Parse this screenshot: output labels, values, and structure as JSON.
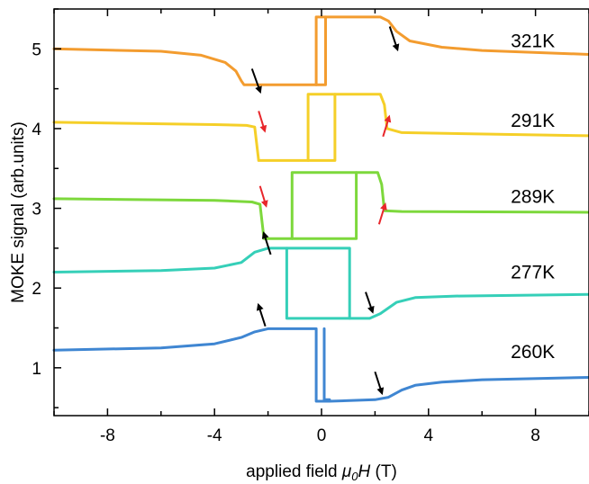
{
  "chart_data": {
    "type": "line",
    "xlabel_prefix": "applied field ",
    "xlabel_var_mu": "μ",
    "xlabel_var_sub": "0",
    "xlabel_var_h": "H",
    "xlabel_unit": " (T)",
    "ylabel": "MOKE signal (arb.units)",
    "xlim": [
      -10,
      10
    ],
    "ylim": [
      0.4,
      5.5
    ],
    "xticks": [
      -8,
      -4,
      0,
      4,
      8
    ],
    "yticks": [
      1,
      2,
      3,
      4,
      5
    ],
    "grid": false,
    "series": [
      {
        "name": "321K",
        "color": "#f39c2f",
        "label_pos": [
          7.9,
          5.1
        ],
        "branch_a": [
          [
            -10,
            5.0
          ],
          [
            -6,
            4.97
          ],
          [
            -4.5,
            4.92
          ],
          [
            -3.6,
            4.83
          ],
          [
            -3.2,
            4.72
          ],
          [
            -3.0,
            4.6
          ],
          [
            -2.9,
            4.55
          ],
          [
            0.15,
            4.55
          ],
          [
            0.15,
            5.4
          ],
          [
            2.2,
            5.4
          ],
          [
            2.5,
            5.35
          ],
          [
            2.8,
            5.22
          ],
          [
            3.3,
            5.1
          ],
          [
            4.5,
            5.02
          ],
          [
            6,
            4.98
          ],
          [
            10,
            4.93
          ]
        ],
        "branch_b": [
          [
            -0.2,
            4.55
          ],
          [
            -0.2,
            5.4
          ],
          [
            0.15,
            5.4
          ]
        ],
        "arrows": [
          {
            "x": -2.6,
            "y": 4.75,
            "dx": 0.3,
            "dy": -0.28,
            "color": "#000000"
          },
          {
            "x": 2.55,
            "y": 5.28,
            "dx": 0.28,
            "dy": -0.28,
            "color": "#000000"
          }
        ]
      },
      {
        "name": "291K",
        "color": "#f5cf28",
        "label_pos": [
          7.9,
          4.1
        ],
        "branch_a": [
          [
            -10,
            4.08
          ],
          [
            -4,
            4.05
          ],
          [
            -2.8,
            4.04
          ],
          [
            -2.5,
            4.02
          ],
          [
            -2.35,
            3.6
          ],
          [
            0.5,
            3.6
          ],
          [
            0.5,
            4.43
          ],
          [
            2.2,
            4.43
          ],
          [
            2.35,
            4.3
          ],
          [
            2.45,
            4.0
          ],
          [
            3,
            3.95
          ],
          [
            10,
            3.91
          ]
        ],
        "branch_b": [
          [
            -0.5,
            3.6
          ],
          [
            -0.5,
            4.43
          ],
          [
            0.5,
            4.43
          ]
        ],
        "arrows": [
          {
            "x": -2.35,
            "y": 4.22,
            "dx": 0.22,
            "dy": -0.24,
            "color": "#e8262b"
          },
          {
            "x": 2.3,
            "y": 3.9,
            "dx": 0.22,
            "dy": 0.24,
            "color": "#e8262b"
          }
        ]
      },
      {
        "name": "289K",
        "color": "#7dd83c",
        "label_pos": [
          7.9,
          3.15
        ],
        "branch_a": [
          [
            -10,
            3.12
          ],
          [
            -4,
            3.1
          ],
          [
            -2.6,
            3.08
          ],
          [
            -2.3,
            3.05
          ],
          [
            -2.15,
            2.62
          ],
          [
            1.3,
            2.62
          ],
          [
            1.3,
            3.45
          ],
          [
            2.1,
            3.45
          ],
          [
            2.25,
            3.3
          ],
          [
            2.35,
            2.97
          ],
          [
            3,
            2.96
          ],
          [
            10,
            2.95
          ]
        ],
        "branch_b": [
          [
            -1.1,
            2.62
          ],
          [
            -1.1,
            3.45
          ],
          [
            1.3,
            3.45
          ]
        ],
        "arrows": [
          {
            "x": -2.3,
            "y": 3.28,
            "dx": 0.22,
            "dy": -0.24,
            "color": "#e8262b"
          },
          {
            "x": 2.15,
            "y": 2.8,
            "dx": 0.22,
            "dy": 0.24,
            "color": "#e8262b"
          }
        ]
      },
      {
        "name": "277K",
        "color": "#35cfb8",
        "label_pos": [
          7.9,
          2.2
        ],
        "branch_a": [
          [
            -10,
            2.2
          ],
          [
            -6,
            2.22
          ],
          [
            -4,
            2.25
          ],
          [
            -3,
            2.32
          ],
          [
            -2.5,
            2.45
          ],
          [
            -2,
            2.5
          ],
          [
            1.05,
            2.5
          ],
          [
            1.05,
            1.62
          ],
          [
            1.8,
            1.62
          ],
          [
            2.2,
            1.68
          ],
          [
            2.8,
            1.82
          ],
          [
            3.5,
            1.88
          ],
          [
            5,
            1.9
          ],
          [
            10,
            1.92
          ]
        ],
        "branch_b": [
          [
            -1.3,
            2.5
          ],
          [
            -1.3,
            1.62
          ],
          [
            1.05,
            1.62
          ]
        ],
        "arrows": [
          {
            "x": -1.9,
            "y": 2.42,
            "dx": -0.25,
            "dy": 0.26,
            "color": "#000000"
          },
          {
            "x": 1.65,
            "y": 1.95,
            "dx": 0.25,
            "dy": -0.24,
            "color": "#000000"
          }
        ]
      },
      {
        "name": "260K",
        "color": "#3f86d2",
        "label_pos": [
          7.9,
          1.2
        ],
        "branch_a": [
          [
            -10,
            1.22
          ],
          [
            -6,
            1.25
          ],
          [
            -4,
            1.3
          ],
          [
            -3,
            1.38
          ],
          [
            -2.5,
            1.45
          ],
          [
            -2,
            1.49
          ],
          [
            -0.2,
            1.49
          ],
          [
            -0.2,
            0.58
          ],
          [
            0.3,
            0.58
          ],
          [
            2,
            0.6
          ],
          [
            2.5,
            0.63
          ],
          [
            3,
            0.72
          ],
          [
            3.5,
            0.78
          ],
          [
            4.5,
            0.82
          ],
          [
            6,
            0.85
          ],
          [
            10,
            0.88
          ]
        ],
        "branch_b": [
          [
            0.1,
            1.49
          ],
          [
            0.1,
            0.6
          ],
          [
            0.3,
            0.6
          ]
        ],
        "arrows": [
          {
            "x": -2.1,
            "y": 1.52,
            "dx": -0.25,
            "dy": 0.26,
            "color": "#000000"
          },
          {
            "x": 2.0,
            "y": 0.95,
            "dx": 0.25,
            "dy": -0.26,
            "color": "#000000"
          }
        ]
      }
    ]
  }
}
